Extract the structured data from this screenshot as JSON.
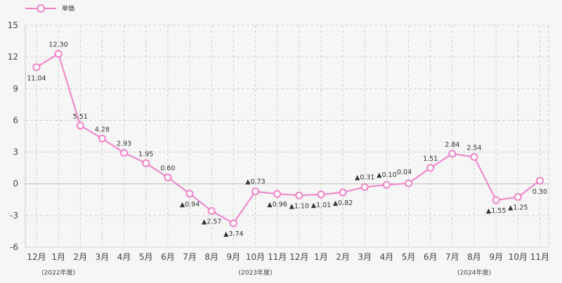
{
  "colors": {
    "line": "#ee82c8",
    "grid": "#c8c8c8",
    "zero": "#bdbdbd",
    "background": "#f6f6f6"
  },
  "chart_data": {
    "type": "line",
    "title": "",
    "xlabel": "",
    "ylabel": "",
    "legend": {
      "position": "top-left"
    },
    "ylim": [
      -6,
      15
    ],
    "yticks": [
      "15",
      "12",
      "9",
      "6",
      "3",
      "0",
      "-3",
      "-6"
    ],
    "categories": [
      "12月",
      "1月",
      "2月",
      "3月",
      "4月",
      "5月",
      "6月",
      "7月",
      "8月",
      "9月",
      "10月",
      "11月",
      "12月",
      "1月",
      "2月",
      "3月",
      "4月",
      "5月",
      "6月",
      "7月",
      "8月",
      "9月",
      "10月",
      "11月"
    ],
    "fiscal_years": [
      "(2022年度)",
      "(2023年度)",
      "(2024年度)"
    ],
    "series": [
      {
        "name": "単価",
        "values": [
          11.04,
          12.3,
          5.51,
          4.28,
          2.93,
          1.95,
          0.6,
          -0.94,
          -2.57,
          -3.74,
          -0.73,
          -0.96,
          -1.1,
          -1.01,
          -0.82,
          -0.31,
          -0.1,
          0.04,
          1.51,
          2.84,
          2.54,
          -1.55,
          -1.25,
          0.3
        ],
        "labels": [
          "11.04",
          "12.30",
          "5.51",
          "4.28",
          "2.93",
          "1.95",
          "0.60",
          "▲0.94",
          "▲2.57",
          "▲3.74",
          "▲0.73",
          "▲0.96",
          "▲1.10",
          "▲1.01",
          "▲0.82",
          "▲0.31",
          "▲0.10",
          "0.04",
          "1.51",
          "2.84",
          "2.54",
          "▲1.55",
          "▲1.25",
          "0.30"
        ]
      }
    ]
  }
}
